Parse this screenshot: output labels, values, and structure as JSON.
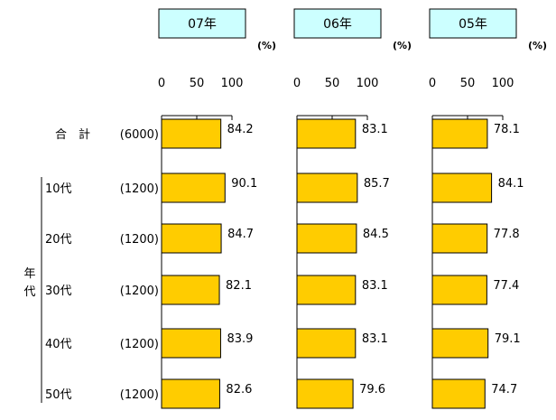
{
  "chart_data": {
    "type": "bar",
    "orientation": "horizontal",
    "unit": "(%)",
    "xlim": [
      0,
      100
    ],
    "ticks": [
      0,
      50,
      100
    ],
    "tick_labels": [
      "0",
      "50",
      "100"
    ],
    "row_group_label": "年代",
    "rows": [
      {
        "name": "合　計",
        "count": "(6000)"
      },
      {
        "name": "10代",
        "count": "(1200)"
      },
      {
        "name": "20代",
        "count": "(1200)"
      },
      {
        "name": "30代",
        "count": "(1200)"
      },
      {
        "name": "40代",
        "count": "(1200)"
      },
      {
        "name": "50代",
        "count": "(1200)"
      }
    ],
    "series": [
      {
        "name": "07年",
        "values": [
          84.2,
          90.1,
          84.7,
          82.1,
          83.9,
          82.6
        ]
      },
      {
        "name": "06年",
        "values": [
          83.1,
          85.7,
          84.5,
          83.1,
          83.1,
          79.6
        ]
      },
      {
        "name": "05年",
        "values": [
          78.1,
          84.1,
          77.8,
          77.4,
          79.1,
          74.7
        ]
      }
    ],
    "colors": {
      "bar_fill": "#ffcc00",
      "bar_stroke": "#000000",
      "title_box_fill": "#ccffff"
    }
  }
}
